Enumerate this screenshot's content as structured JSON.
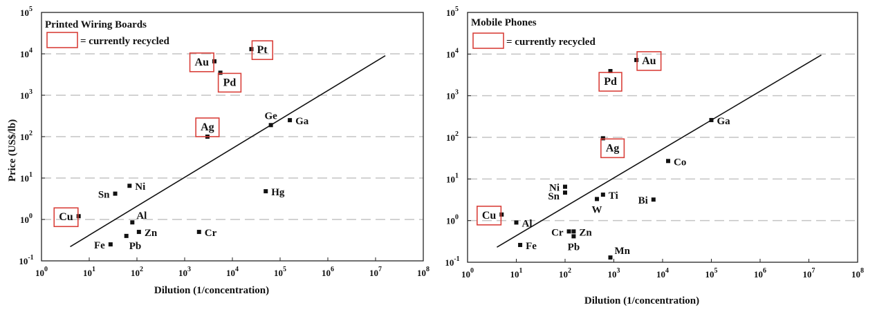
{
  "chart_data": [
    {
      "type": "scatter",
      "title": "Printed Wiring Boards",
      "xlabel": "Dilution (1/concentration)",
      "ylabel": "Price (US$/lb)",
      "xscale": "log",
      "yscale": "log",
      "xlim": [
        1,
        100000000
      ],
      "ylim": [
        0.1,
        100000
      ],
      "x_ticks": [
        {
          "value": 1,
          "base": "10",
          "exp": "0"
        },
        {
          "value": 10,
          "base": "10",
          "exp": "1"
        },
        {
          "value": 100,
          "base": "10",
          "exp": "2"
        },
        {
          "value": 1000,
          "base": "10",
          "exp": "3"
        },
        {
          "value": 10000,
          "base": "10",
          "exp": "4"
        },
        {
          "value": 100000,
          "base": "10",
          "exp": "5"
        },
        {
          "value": 1000000,
          "base": "10",
          "exp": "6"
        },
        {
          "value": 10000000,
          "base": "10",
          "exp": "7"
        },
        {
          "value": 100000000,
          "base": "10",
          "exp": "8"
        }
      ],
      "y_ticks": [
        {
          "value": 0.1,
          "base": "10",
          "exp": "-1"
        },
        {
          "value": 1,
          "base": "10",
          "exp": "0"
        },
        {
          "value": 10,
          "base": "10",
          "exp": "1"
        },
        {
          "value": 100,
          "base": "10",
          "exp": "2"
        },
        {
          "value": 1000,
          "base": "10",
          "exp": "3"
        },
        {
          "value": 10000,
          "base": "10",
          "exp": "4"
        },
        {
          "value": 100000,
          "base": "10",
          "exp": "5"
        }
      ],
      "grid": "horizontal dashed",
      "legend": {
        "text": "= currently recycled",
        "marker": "red box",
        "placement": "top-left"
      },
      "trend_line": {
        "x": [
          4,
          16000000
        ],
        "y": [
          0.22,
          9000
        ]
      },
      "points": [
        {
          "label": "Pt",
          "x": 25000,
          "y": 13000,
          "recycled": true,
          "label_pos": "right"
        },
        {
          "label": "Au",
          "x": 4200,
          "y": 6600,
          "recycled": true,
          "label_pos": "left"
        },
        {
          "label": "Pd",
          "x": 5600,
          "y": 3500,
          "recycled": true,
          "label_pos": "below-right"
        },
        {
          "label": "Ag",
          "x": 3000,
          "y": 100,
          "recycled": true,
          "label_pos": "above"
        },
        {
          "label": "Ge",
          "x": 64000,
          "y": 190,
          "recycled": false,
          "label_pos": "above"
        },
        {
          "label": "Ga",
          "x": 160000,
          "y": 250,
          "recycled": false,
          "label_pos": "right"
        },
        {
          "label": "Sn",
          "x": 35,
          "y": 4.2,
          "recycled": false,
          "label_pos": "left"
        },
        {
          "label": "Ni",
          "x": 70,
          "y": 6.5,
          "recycled": false,
          "label_pos": "right"
        },
        {
          "label": "Hg",
          "x": 50000,
          "y": 4.8,
          "recycled": false,
          "label_pos": "right"
        },
        {
          "label": "Cu",
          "x": 6,
          "y": 1.2,
          "recycled": true,
          "label_pos": "left"
        },
        {
          "label": "Al",
          "x": 80,
          "y": 0.85,
          "recycled": false,
          "label_pos": "above-right"
        },
        {
          "label": "Zn",
          "x": 110,
          "y": 0.5,
          "recycled": false,
          "label_pos": "right"
        },
        {
          "label": "Cr",
          "x": 2000,
          "y": 0.5,
          "recycled": false,
          "label_pos": "right"
        },
        {
          "label": "Fe",
          "x": 28,
          "y": 0.25,
          "recycled": false,
          "label_pos": "left"
        },
        {
          "label": "Pb",
          "x": 60,
          "y": 0.4,
          "recycled": false,
          "label_pos": "below-right"
        }
      ]
    },
    {
      "type": "scatter",
      "title": "Mobile Phones",
      "xlabel": "Dilution (1/concentration)",
      "ylabel": "",
      "xscale": "log",
      "yscale": "log",
      "xlim": [
        1,
        100000000
      ],
      "ylim": [
        0.1,
        100000
      ],
      "x_ticks": [
        {
          "value": 1,
          "base": "10",
          "exp": "0"
        },
        {
          "value": 10,
          "base": "10",
          "exp": "1"
        },
        {
          "value": 100,
          "base": "10",
          "exp": "2"
        },
        {
          "value": 1000,
          "base": "10",
          "exp": "3"
        },
        {
          "value": 10000,
          "base": "10",
          "exp": "4"
        },
        {
          "value": 100000,
          "base": "10",
          "exp": "5"
        },
        {
          "value": 1000000,
          "base": "10",
          "exp": "6"
        },
        {
          "value": 10000000,
          "base": "10",
          "exp": "7"
        },
        {
          "value": 100000000,
          "base": "10",
          "exp": "8"
        }
      ],
      "y_ticks": [
        {
          "value": 0.1,
          "base": "10",
          "exp": "-1"
        },
        {
          "value": 1,
          "base": "10",
          "exp": "0"
        },
        {
          "value": 10,
          "base": "10",
          "exp": "1"
        },
        {
          "value": 100,
          "base": "10",
          "exp": "2"
        },
        {
          "value": 1000,
          "base": "10",
          "exp": "3"
        },
        {
          "value": 10000,
          "base": "10",
          "exp": "4"
        },
        {
          "value": 100000,
          "base": "10",
          "exp": "5"
        }
      ],
      "grid": "horizontal dashed",
      "legend": {
        "text": "= currently recycled",
        "marker": "red box",
        "placement": "top-left"
      },
      "trend_line": {
        "x": [
          4,
          18000000
        ],
        "y": [
          0.23,
          9500
        ]
      },
      "points": [
        {
          "label": "Au",
          "x": 2900,
          "y": 7200,
          "recycled": true,
          "label_pos": "right"
        },
        {
          "label": "Pd",
          "x": 850,
          "y": 3900,
          "recycled": true,
          "label_pos": "below"
        },
        {
          "label": "Ag",
          "x": 600,
          "y": 95,
          "recycled": true,
          "label_pos": "below-right"
        },
        {
          "label": "Ga",
          "x": 100000,
          "y": 260,
          "recycled": false,
          "label_pos": "right"
        },
        {
          "label": "Co",
          "x": 13000,
          "y": 27,
          "recycled": false,
          "label_pos": "right"
        },
        {
          "label": "Ni",
          "x": 100,
          "y": 6.5,
          "recycled": false,
          "label_pos": "left"
        },
        {
          "label": "Sn",
          "x": 100,
          "y": 4.7,
          "recycled": false,
          "label_pos": "left-below"
        },
        {
          "label": "Ti",
          "x": 600,
          "y": 4.2,
          "recycled": false,
          "label_pos": "right"
        },
        {
          "label": "W",
          "x": 450,
          "y": 3.3,
          "recycled": false,
          "label_pos": "below"
        },
        {
          "label": "Bi",
          "x": 6500,
          "y": 3.2,
          "recycled": false,
          "label_pos": "left"
        },
        {
          "label": "Cu",
          "x": 5,
          "y": 1.4,
          "recycled": true,
          "label_pos": "left"
        },
        {
          "label": "Al",
          "x": 10,
          "y": 0.9,
          "recycled": false,
          "label_pos": "right"
        },
        {
          "label": "Cr",
          "x": 120,
          "y": 0.55,
          "recycled": false,
          "label_pos": "left"
        },
        {
          "label": "Zn",
          "x": 150,
          "y": 0.55,
          "recycled": false,
          "label_pos": "right"
        },
        {
          "label": "Pb",
          "x": 150,
          "y": 0.42,
          "recycled": false,
          "label_pos": "below"
        },
        {
          "label": "Fe",
          "x": 12,
          "y": 0.26,
          "recycled": false,
          "label_pos": "right"
        },
        {
          "label": "Mn",
          "x": 850,
          "y": 0.13,
          "recycled": false,
          "label_pos": "above-right"
        }
      ]
    }
  ],
  "colors": {
    "recycled_box": "#d9403a",
    "marker": "#111111",
    "trend_line": "#111111",
    "grid": "#c4c4c4",
    "axis": "#222222"
  }
}
